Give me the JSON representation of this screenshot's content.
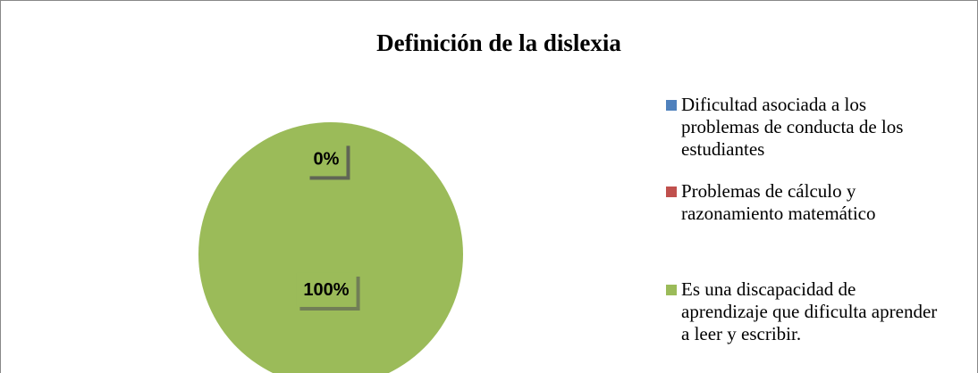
{
  "chart_data": {
    "type": "pie",
    "title": "Definición de la dislexia",
    "categories": [
      "Dificultad asociada a los problemas de conducta de los estudiantes",
      "Problemas de cálculo y razonamiento matemático",
      "Es una discapacidad de aprendizaje que dificulta aprender a leer y escribir."
    ],
    "values": [
      0,
      0,
      100
    ],
    "value_labels": [
      "0%",
      "0%",
      "100%"
    ],
    "colors": [
      "#4f81bd",
      "#c0504d",
      "#9bbb59"
    ],
    "legend": "right"
  }
}
